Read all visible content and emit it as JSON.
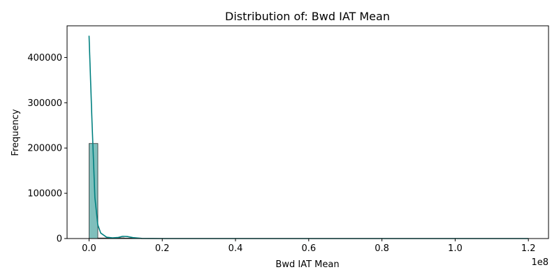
{
  "chart_data": {
    "type": "histogram",
    "title": "Distribution of: Bwd IAT Mean",
    "xlabel": "Bwd IAT Mean",
    "ylabel": "Frequency",
    "x_offset_label": "1e8",
    "x_scale": 100000000,
    "xlim": [
      -6000000,
      125500000
    ],
    "ylim": [
      0,
      470000
    ],
    "x_ticks": [
      0,
      20000000,
      40000000,
      60000000,
      80000000,
      100000000,
      120000000
    ],
    "x_tick_labels": [
      "0.0",
      "0.2",
      "0.4",
      "0.6",
      "0.8",
      "1.0",
      "1.2"
    ],
    "y_ticks": [
      0,
      100000,
      200000,
      300000,
      400000
    ],
    "y_tick_labels": [
      "0",
      "100000",
      "200000",
      "300000",
      "400000"
    ],
    "bins": [
      {
        "x0": 0,
        "x1": 2400000,
        "count": 210000
      },
      {
        "x0": 2400000,
        "x1": 4800000,
        "count": 1200
      },
      {
        "x0": 4800000,
        "x1": 7200000,
        "count": 900
      },
      {
        "x0": 7200000,
        "x1": 9600000,
        "count": 1500
      },
      {
        "x0": 9600000,
        "x1": 12000000,
        "count": 1000
      },
      {
        "x0": 12000000,
        "x1": 14400000,
        "count": 300
      }
    ],
    "kde": {
      "x": [
        0,
        800000,
        1600000,
        2400000,
        3200000,
        4800000,
        6400000,
        8000000,
        9200000,
        10400000,
        12000000,
        14400000,
        20000000,
        40000000,
        60000000,
        80000000,
        100000000,
        120000000
      ],
      "y": [
        448000,
        260000,
        90000,
        30000,
        12000,
        3000,
        1500,
        2500,
        5000,
        4500,
        2000,
        300,
        0,
        0,
        0,
        0,
        0,
        0
      ]
    },
    "bar_color": "#7fbfbc",
    "line_color": "#008080",
    "grid": false,
    "legend": "none"
  }
}
